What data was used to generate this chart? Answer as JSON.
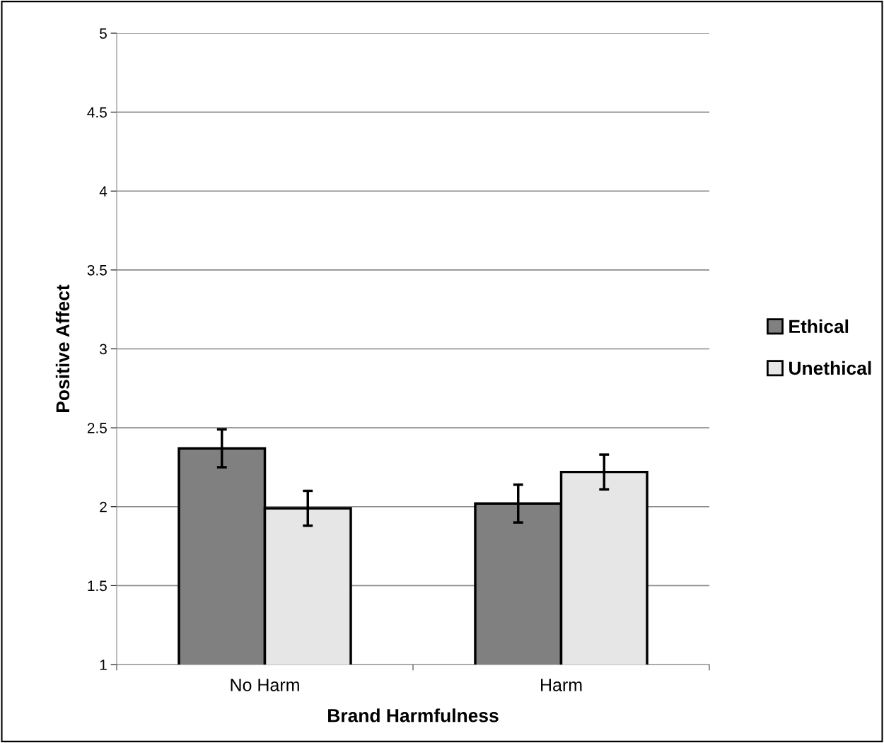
{
  "chart_data": {
    "type": "bar",
    "xlabel": "Brand Harmfulness",
    "ylabel": "Positive Affect",
    "categories": [
      "No Harm",
      "Harm"
    ],
    "series": [
      {
        "name": "Ethical",
        "color": "#808080",
        "values": [
          2.37,
          2.02
        ],
        "errors": [
          0.12,
          0.12
        ]
      },
      {
        "name": "Unethical",
        "color": "#e6e6e6",
        "values": [
          1.99,
          2.22
        ],
        "errors": [
          0.11,
          0.11
        ]
      }
    ],
    "ylim": [
      1,
      5
    ],
    "yticks": [
      1,
      1.5,
      2,
      2.5,
      3,
      3.5,
      4,
      4.5,
      5
    ],
    "grid": "y",
    "legend": "right"
  }
}
